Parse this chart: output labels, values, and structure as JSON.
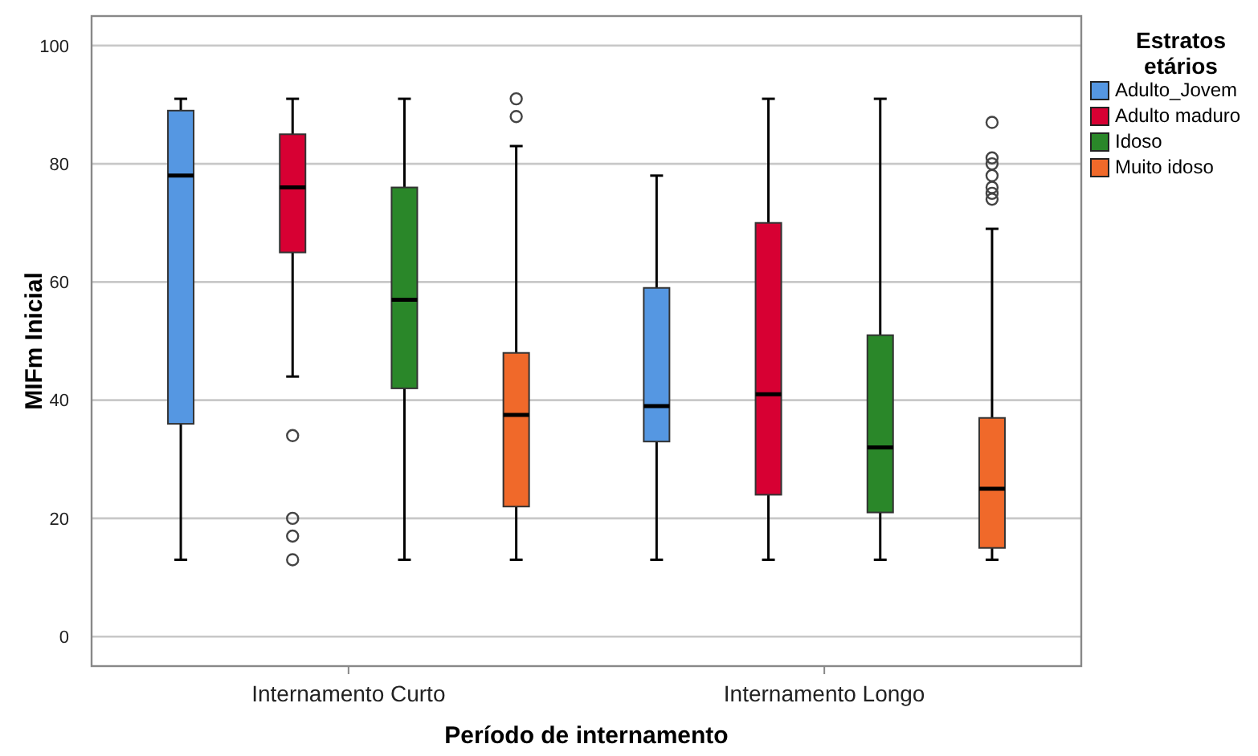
{
  "chart_data": {
    "type": "box",
    "xlabel": "Período de internamento",
    "ylabel": "MIFm Inicial",
    "legend_title": "Estratos etários",
    "legend": "top right",
    "grid": "y",
    "categories": [
      "Internamento Curto",
      "Internamento Longo"
    ],
    "ylim": [
      -5,
      105
    ],
    "yticks": [
      0,
      20,
      40,
      60,
      80,
      100
    ],
    "series": [
      {
        "name": "Adulto_Jovem",
        "color": "#5597e2",
        "boxes": [
          {
            "low": 13,
            "q1": 36,
            "median": 78,
            "q3": 89,
            "high": 91
          },
          {
            "low": 13,
            "q1": 33,
            "median": 39,
            "q3": 59,
            "high": 78
          }
        ]
      },
      {
        "name": "Adulto maduro",
        "color": "#d70033",
        "boxes": [
          {
            "low": 44,
            "q1": 65,
            "median": 76,
            "q3": 85,
            "high": 91,
            "outliers": [
              34,
              20,
              17,
              13
            ]
          },
          {
            "low": 13,
            "q1": 24,
            "median": 41,
            "q3": 70,
            "high": 91
          }
        ]
      },
      {
        "name": "Idoso",
        "color": "#2a8729",
        "boxes": [
          {
            "low": 13,
            "q1": 42,
            "median": 57,
            "q3": 76,
            "high": 91
          },
          {
            "low": 13,
            "q1": 21,
            "median": 32,
            "q3": 51,
            "high": 91
          }
        ]
      },
      {
        "name": "Muito idoso",
        "color": "#f0692a",
        "boxes": [
          {
            "low": 13,
            "q1": 22,
            "median": 37.5,
            "q3": 48,
            "high": 83,
            "outliers": [
              91,
              88
            ]
          },
          {
            "low": 13,
            "q1": 15,
            "median": 25,
            "q3": 37,
            "high": 69,
            "outliers": [
              87,
              81,
              80,
              78,
              76,
              75,
              74
            ]
          }
        ]
      }
    ]
  }
}
